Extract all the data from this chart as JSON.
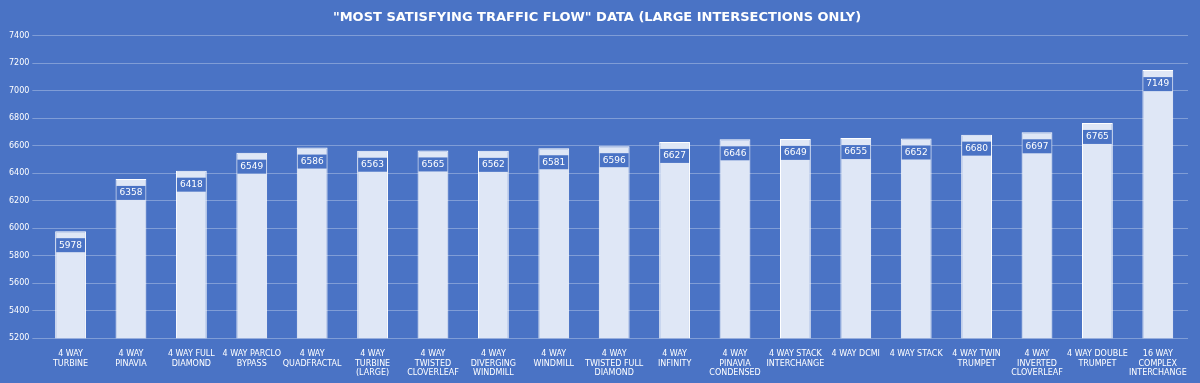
{
  "chart_data": {
    "type": "bar",
    "title": "\"MOST SATISFYING TRAFFIC FLOW\" DATA (LARGE INTERSECTIONS ONLY)",
    "categories": [
      "4 WAY TURBINE",
      "4 WAY PINAVIA",
      "4 WAY FULL DIAMOND",
      "4 WAY PARCLO BYPASS",
      "4 WAY QUADFRACTAL",
      "4 WAY TURBINE (LARGE)",
      "4 WAY TWISTED CLOVERLEAF",
      "4 WAY DIVERGING WINDMILL",
      "4 WAY WINDMILL",
      "4 WAY TWISTED FULL DIAMOND",
      "4 WAY INFINITY",
      "4 WAY PINAVIA CONDENSED",
      "4 WAY STACK INTERCHANGE",
      "4 WAY DCMI",
      "4 WAY STACK",
      "4 WAY TWIN TRUMPET",
      "4 WAY INVERTED CLOVERLEAF",
      "4 WAY DOUBLE TRUMPET",
      "16 WAY COMPLEX INTERCHANGE"
    ],
    "values": [
      5978,
      6358,
      6418,
      6549,
      6586,
      6563,
      6565,
      6562,
      6581,
      6596,
      6627,
      6646,
      6649,
      6655,
      6652,
      6680,
      6697,
      6765,
      7149
    ],
    "color": "#dfe7f6",
    "ylim": [
      5200,
      7400
    ],
    "yticks": [
      5200,
      5400,
      5600,
      5800,
      6000,
      6200,
      6400,
      6600,
      6800,
      7000,
      7200,
      7400
    ],
    "grid": "y",
    "data_labels": true,
    "legend": false
  }
}
